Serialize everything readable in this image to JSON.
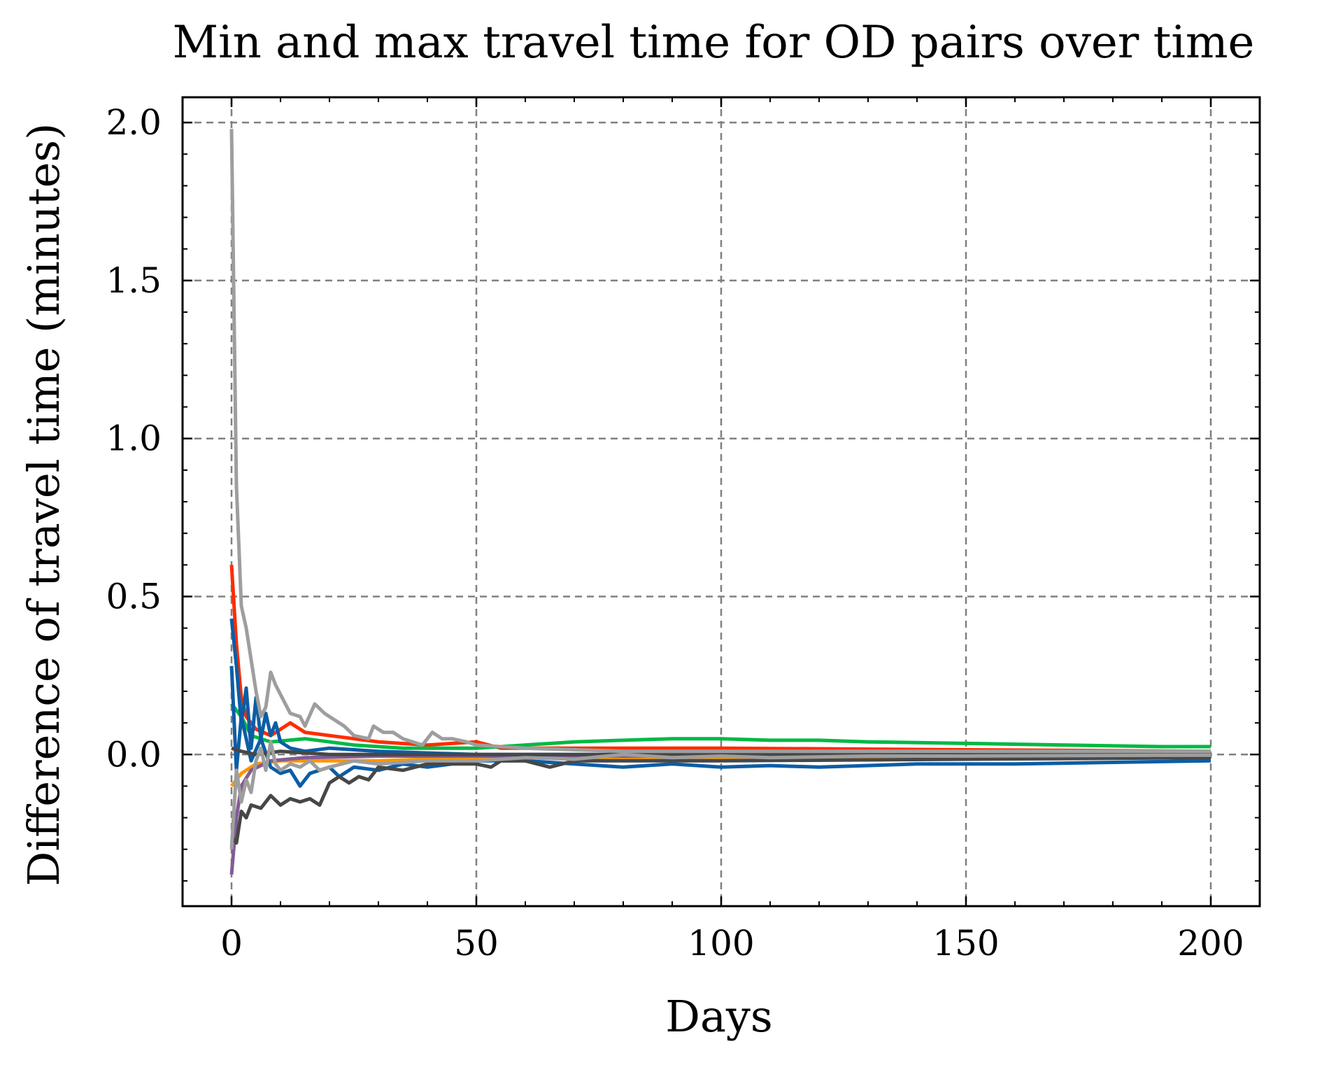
{
  "chart_data": {
    "type": "line",
    "title": "Min and max travel time for OD pairs over time",
    "xlabel": "Days",
    "ylabel": "Difference of travel time (minutes)",
    "xlim": [
      -10,
      210
    ],
    "ylim": [
      -0.48,
      2.08
    ],
    "xticks": [
      0,
      50,
      100,
      150,
      200
    ],
    "xtick_labels": [
      "0",
      "50",
      "100",
      "150",
      "200"
    ],
    "yticks": [
      0.0,
      0.5,
      1.0,
      1.5,
      2.0
    ],
    "ytick_labels": [
      "0.0",
      "0.5",
      "1.0",
      "1.5",
      "2.0"
    ],
    "x_minor_step": 10,
    "y_minor_step": 0.1,
    "grid": true,
    "legend": "none",
    "series": [
      {
        "color": "#FF2C00",
        "points": [
          [
            0,
            0.6
          ],
          [
            1,
            0.35
          ],
          [
            2,
            0.18
          ],
          [
            3,
            0.12
          ],
          [
            5,
            0.08
          ],
          [
            8,
            0.06
          ],
          [
            12,
            0.1
          ],
          [
            15,
            0.07
          ],
          [
            20,
            0.06
          ],
          [
            25,
            0.05
          ],
          [
            30,
            0.04
          ],
          [
            40,
            0.03
          ],
          [
            50,
            0.04
          ],
          [
            55,
            0.02
          ],
          [
            70,
            0.02
          ],
          [
            100,
            0.02
          ],
          [
            150,
            0.015
          ],
          [
            200,
            0.01
          ]
        ]
      },
      {
        "color": "#00B945",
        "points": [
          [
            0,
            0.16
          ],
          [
            2,
            0.12
          ],
          [
            4,
            0.06
          ],
          [
            8,
            0.04
          ],
          [
            15,
            0.05
          ],
          [
            25,
            0.03
          ],
          [
            35,
            0.02
          ],
          [
            50,
            0.02
          ],
          [
            60,
            0.03
          ],
          [
            70,
            0.04
          ],
          [
            80,
            0.045
          ],
          [
            90,
            0.05
          ],
          [
            100,
            0.05
          ],
          [
            110,
            0.045
          ],
          [
            120,
            0.045
          ],
          [
            130,
            0.04
          ],
          [
            150,
            0.035
          ],
          [
            170,
            0.03
          ],
          [
            190,
            0.025
          ],
          [
            200,
            0.025
          ]
        ]
      },
      {
        "color": "#FF9500",
        "points": [
          [
            0,
            -0.1
          ],
          [
            2,
            -0.06
          ],
          [
            5,
            -0.03
          ],
          [
            10,
            -0.02
          ],
          [
            20,
            -0.02
          ],
          [
            30,
            -0.02
          ],
          [
            40,
            -0.015
          ],
          [
            50,
            -0.01
          ],
          [
            100,
            -0.01
          ],
          [
            150,
            -0.012
          ],
          [
            200,
            -0.01
          ]
        ]
      },
      {
        "color": "#845B97",
        "points": [
          [
            0,
            -0.38
          ],
          [
            1,
            -0.2
          ],
          [
            2,
            -0.1
          ],
          [
            4,
            -0.05
          ],
          [
            8,
            -0.02
          ],
          [
            15,
            -0.01
          ],
          [
            30,
            -0.005
          ],
          [
            60,
            -0.005
          ],
          [
            100,
            -0.005
          ],
          [
            200,
            -0.005
          ]
        ]
      },
      {
        "color": "#0C5DA5",
        "points": [
          [
            0,
            0.43
          ],
          [
            1,
            0.28
          ],
          [
            2,
            0.1
          ],
          [
            3,
            0.21
          ],
          [
            4,
            0.02
          ],
          [
            5,
            0.18
          ],
          [
            6,
            0.05
          ],
          [
            7,
            0.13
          ],
          [
            8,
            0.06
          ],
          [
            9,
            0.1
          ],
          [
            10,
            0.04
          ],
          [
            12,
            0.02
          ],
          [
            15,
            0.01
          ],
          [
            20,
            0.02
          ],
          [
            30,
            0.01
          ],
          [
            50,
            0.0
          ],
          [
            100,
            0.0
          ],
          [
            200,
            0.0
          ]
        ]
      },
      {
        "color": "#0C5DA5",
        "points": [
          [
            0,
            0.28
          ],
          [
            1,
            -0.05
          ],
          [
            2,
            0.12
          ],
          [
            4,
            -0.02
          ],
          [
            6,
            0.05
          ],
          [
            8,
            -0.04
          ],
          [
            10,
            -0.06
          ],
          [
            12,
            -0.05
          ],
          [
            14,
            -0.1
          ],
          [
            16,
            -0.06
          ],
          [
            18,
            -0.05
          ],
          [
            20,
            -0.04
          ],
          [
            22,
            -0.07
          ],
          [
            25,
            -0.04
          ],
          [
            30,
            -0.05
          ],
          [
            35,
            -0.03
          ],
          [
            40,
            -0.04
          ],
          [
            45,
            -0.03
          ],
          [
            50,
            -0.02
          ],
          [
            60,
            -0.02
          ],
          [
            70,
            -0.03
          ],
          [
            80,
            -0.04
          ],
          [
            90,
            -0.03
          ],
          [
            100,
            -0.04
          ],
          [
            110,
            -0.035
          ],
          [
            120,
            -0.04
          ],
          [
            140,
            -0.03
          ],
          [
            160,
            -0.03
          ],
          [
            180,
            -0.025
          ],
          [
            200,
            -0.02
          ]
        ]
      },
      {
        "color": "#474747",
        "points": [
          [
            0,
            -0.26
          ],
          [
            1,
            -0.28
          ],
          [
            2,
            -0.18
          ],
          [
            3,
            -0.2
          ],
          [
            4,
            -0.16
          ],
          [
            6,
            -0.17
          ],
          [
            8,
            -0.13
          ],
          [
            10,
            -0.16
          ],
          [
            12,
            -0.14
          ],
          [
            14,
            -0.15
          ],
          [
            16,
            -0.14
          ],
          [
            18,
            -0.16
          ],
          [
            20,
            -0.09
          ],
          [
            22,
            -0.07
          ],
          [
            24,
            -0.09
          ],
          [
            26,
            -0.07
          ],
          [
            28,
            -0.08
          ],
          [
            30,
            -0.04
          ],
          [
            35,
            -0.05
          ],
          [
            40,
            -0.03
          ],
          [
            45,
            -0.03
          ],
          [
            50,
            -0.03
          ],
          [
            53,
            -0.04
          ],
          [
            55,
            -0.02
          ],
          [
            60,
            -0.02
          ],
          [
            65,
            -0.04
          ],
          [
            70,
            -0.02
          ],
          [
            80,
            -0.02
          ],
          [
            100,
            -0.02
          ],
          [
            150,
            -0.015
          ],
          [
            200,
            -0.01
          ]
        ]
      },
      {
        "color": "#474747",
        "points": [
          [
            0,
            0.02
          ],
          [
            2,
            0.01
          ],
          [
            5,
            0.0
          ],
          [
            10,
            0.01
          ],
          [
            20,
            0.0
          ],
          [
            50,
            0.0
          ],
          [
            100,
            0.0
          ],
          [
            200,
            0.0
          ]
        ]
      },
      {
        "color": "#9E9E9E",
        "points": [
          [
            0,
            1.98
          ],
          [
            1,
            0.85
          ],
          [
            2,
            0.47
          ],
          [
            3,
            0.4
          ],
          [
            4,
            0.3
          ],
          [
            5,
            0.2
          ],
          [
            6,
            0.12
          ],
          [
            7,
            0.15
          ],
          [
            8,
            0.26
          ],
          [
            9,
            0.22
          ],
          [
            10,
            0.19
          ],
          [
            12,
            0.13
          ],
          [
            14,
            0.12
          ],
          [
            15,
            0.09
          ],
          [
            17,
            0.16
          ],
          [
            19,
            0.13
          ],
          [
            21,
            0.11
          ],
          [
            23,
            0.09
          ],
          [
            25,
            0.06
          ],
          [
            28,
            0.05
          ],
          [
            29,
            0.09
          ],
          [
            31,
            0.07
          ],
          [
            33,
            0.07
          ],
          [
            35,
            0.05
          ],
          [
            37,
            0.04
          ],
          [
            39,
            0.03
          ],
          [
            41,
            0.07
          ],
          [
            43,
            0.05
          ],
          [
            45,
            0.05
          ],
          [
            48,
            0.04
          ],
          [
            50,
            0.03
          ],
          [
            55,
            0.025
          ],
          [
            60,
            0.02
          ],
          [
            70,
            0.015
          ],
          [
            80,
            0.01
          ],
          [
            100,
            0.01
          ],
          [
            150,
            0.01
          ],
          [
            200,
            0.01
          ]
        ]
      },
      {
        "color": "#9E9E9E",
        "points": [
          [
            0,
            -0.3
          ],
          [
            1,
            -0.05
          ],
          [
            2,
            -0.15
          ],
          [
            3,
            -0.08
          ],
          [
            4,
            -0.12
          ],
          [
            5,
            -0.02
          ],
          [
            6,
            0.02
          ],
          [
            7,
            -0.05
          ],
          [
            8,
            0.04
          ],
          [
            9,
            -0.03
          ],
          [
            10,
            -0.05
          ],
          [
            12,
            -0.03
          ],
          [
            14,
            -0.04
          ],
          [
            16,
            -0.02
          ],
          [
            18,
            -0.05
          ],
          [
            20,
            -0.04
          ],
          [
            25,
            -0.02
          ],
          [
            30,
            -0.03
          ],
          [
            40,
            -0.02
          ],
          [
            50,
            -0.02
          ],
          [
            60,
            -0.01
          ],
          [
            70,
            -0.015
          ],
          [
            80,
            0.0
          ],
          [
            90,
            -0.01
          ],
          [
            100,
            -0.005
          ],
          [
            110,
            -0.01
          ],
          [
            130,
            -0.005
          ],
          [
            150,
            -0.005
          ],
          [
            180,
            -0.003
          ],
          [
            200,
            -0.002
          ]
        ]
      }
    ]
  }
}
